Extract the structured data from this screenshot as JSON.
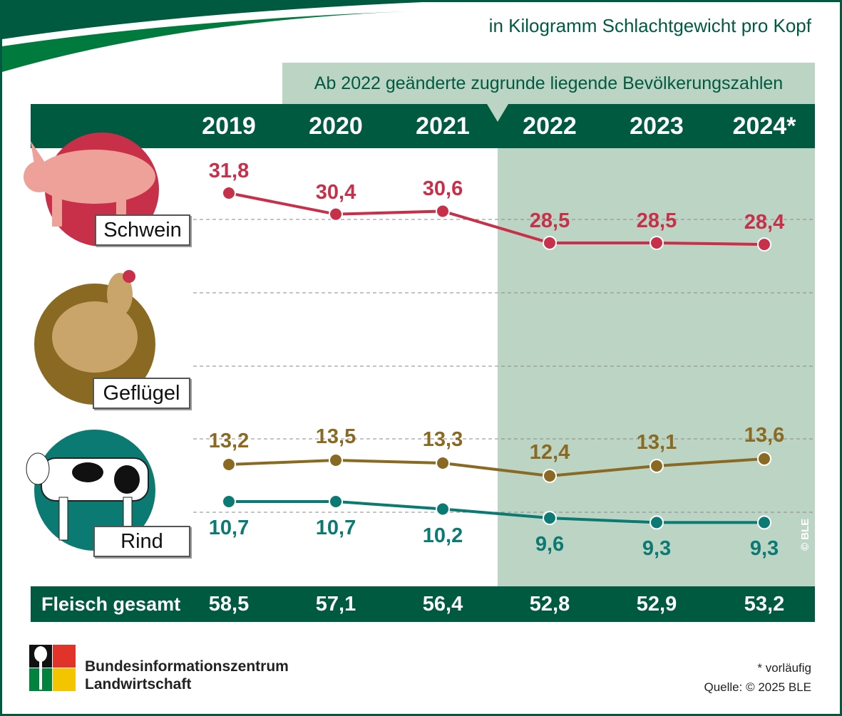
{
  "unit_note": "in Kilogramm Schlachtgewicht pro Kopf",
  "population_note": "Ab 2022 geänderte zugrunde liegende Bevölkerungszahlen",
  "colors": {
    "dark_green": "#005a40",
    "light_green": "#bcd4c4",
    "schwein": "#c8304a",
    "gefluegel": "#8a6a23",
    "rind": "#0b7a72"
  },
  "chart_data": {
    "type": "line",
    "categories": [
      "2019",
      "2020",
      "2021",
      "2022",
      "2023",
      "2024*"
    ],
    "series": [
      {
        "name": "Schwein",
        "icon": "pig-icon",
        "values": [
          31.8,
          30.4,
          30.6,
          28.5,
          28.5,
          28.4
        ],
        "labels": [
          "31,8",
          "30,4",
          "30,6",
          "28,5",
          "28,5",
          "28,4"
        ]
      },
      {
        "name": "Geflügel",
        "icon": "chicken-icon",
        "values": [
          13.2,
          13.5,
          13.3,
          12.4,
          13.1,
          13.6
        ],
        "labels": [
          "13,2",
          "13,5",
          "13,3",
          "12,4",
          "13,1",
          "13,6"
        ]
      },
      {
        "name": "Rind",
        "icon": "cow-icon",
        "values": [
          10.7,
          10.7,
          10.2,
          9.6,
          9.3,
          9.3
        ],
        "labels": [
          "10,7",
          "10,7",
          "10,2",
          "9,6",
          "9,3",
          "9,3"
        ]
      }
    ],
    "totals_label": "Fleisch gesamt",
    "totals": [
      "58,5",
      "57,1",
      "56,4",
      "52,8",
      "52,9",
      "53,2"
    ],
    "highlight_from": "2022",
    "grid": "dashed horizontal"
  },
  "footer": {
    "org_line1": "Bundesinformationszentrum",
    "org_line2": "Landwirtschaft",
    "footnote": "* vorläufig",
    "source": "Quelle: © 2025 BLE",
    "watermark": "© BLE"
  }
}
